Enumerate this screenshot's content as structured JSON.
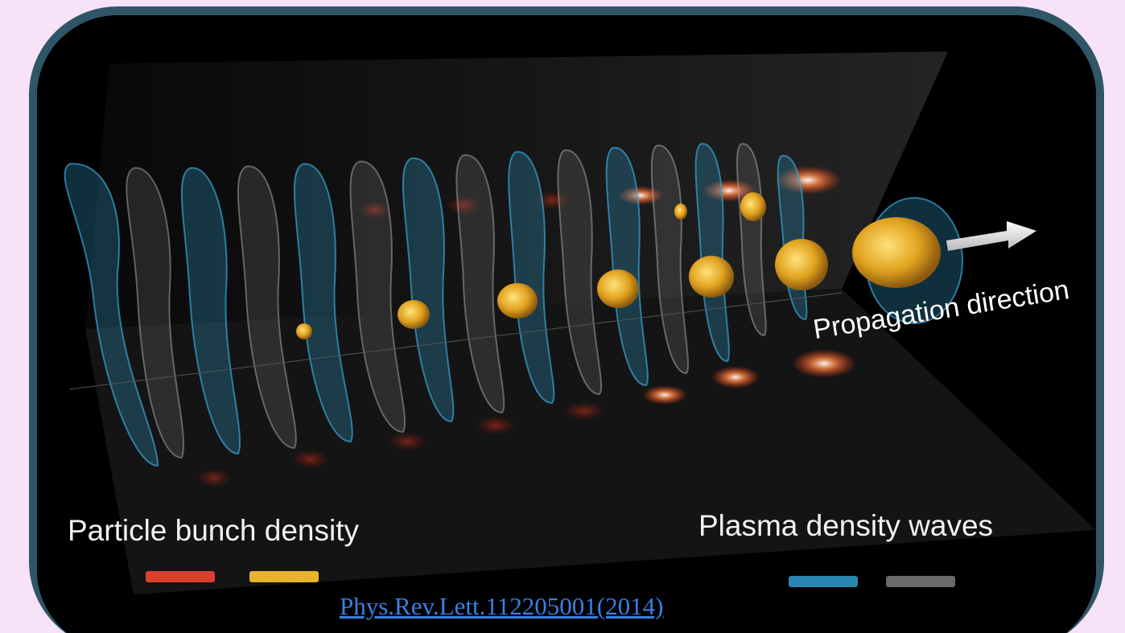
{
  "figure": {
    "labels": {
      "propagation": "Propagation direction",
      "particle_bunch": "Particle bunch density",
      "plasma_waves": "Plasma density waves"
    },
    "legend": {
      "particle_colors": [
        "#d8402c",
        "#e8b22e"
      ],
      "plasma_colors": [
        "#2b86b0",
        "#6a6a6a"
      ]
    },
    "citation": "Phys.Rev.Lett.112205001(2014)"
  },
  "colors": {
    "background": "#f8e2f7",
    "frame_border": "#2f5566",
    "image_bg": "#000000",
    "link": "#3a7fe0"
  }
}
